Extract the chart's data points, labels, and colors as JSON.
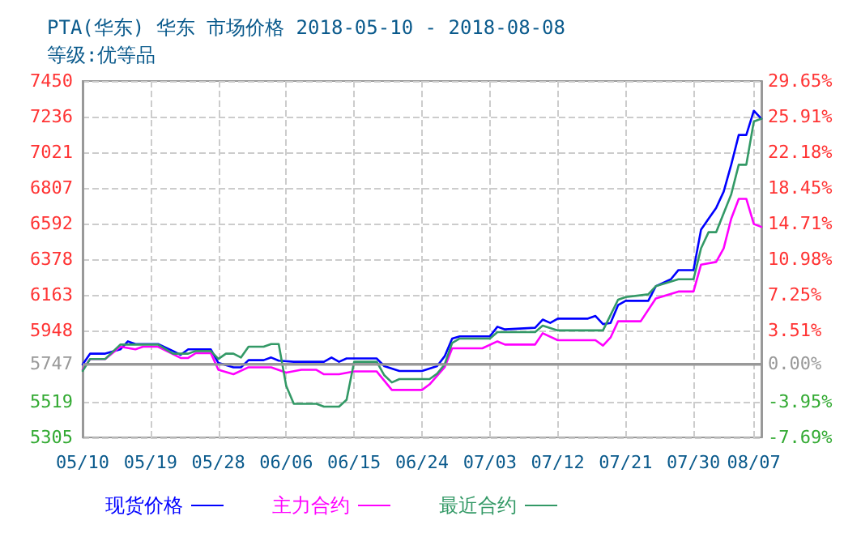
{
  "chart_data": {
    "type": "line",
    "title": "PTA(华东) 华东 市场价格 2018-05-10 - 2018-08-08",
    "subtitle": "等级:优等品",
    "xlim": [
      "2018-05-10",
      "2018-08-08"
    ],
    "xticks": [
      {
        "value": "2018-05-10",
        "label": "05/10"
      },
      {
        "value": "2018-05-19",
        "label": "05/19"
      },
      {
        "value": "2018-05-28",
        "label": "05/28"
      },
      {
        "value": "2018-06-06",
        "label": "06/06"
      },
      {
        "value": "2018-06-15",
        "label": "06/15"
      },
      {
        "value": "2018-06-24",
        "label": "06/24"
      },
      {
        "value": "2018-07-03",
        "label": "07/03"
      },
      {
        "value": "2018-07-12",
        "label": "07/12"
      },
      {
        "value": "2018-07-21",
        "label": "07/21"
      },
      {
        "value": "2018-07-30",
        "label": "07/30"
      },
      {
        "value": "2018-08-07",
        "label": "08/07"
      }
    ],
    "ylim": [
      5305,
      7450
    ],
    "yticks": [
      5305,
      5519,
      5747,
      5948,
      6163,
      6378,
      6592,
      6807,
      7021,
      7236,
      7450
    ],
    "y2lim": [
      -7.69,
      29.65
    ],
    "y2ticks": [
      {
        "value": -7.69,
        "label": "-7.69%"
      },
      {
        "value": -3.95,
        "label": "-3.95%"
      },
      {
        "value": 0,
        "label": "0.00%"
      },
      {
        "value": 3.51,
        "label": "3.51%"
      },
      {
        "value": 7.25,
        "label": "7.25%"
      },
      {
        "value": 10.98,
        "label": "10.98%"
      },
      {
        "value": 14.71,
        "label": "14.71%"
      },
      {
        "value": 18.45,
        "label": "18.45%"
      },
      {
        "value": 22.18,
        "label": "22.18%"
      },
      {
        "value": 25.91,
        "label": "25.91%"
      },
      {
        "value": 29.65,
        "label": "29.65%"
      }
    ],
    "ref_lines": [
      {
        "axis": "y2",
        "value": 0,
        "label": null,
        "color": "#999999"
      }
    ],
    "grid": true,
    "legend": "bottom left",
    "marker": "none",
    "line_style": "solid",
    "series": [
      {
        "name": "现货价格",
        "color": "#0000ff",
        "x": [
          "2018-05-10",
          "2018-05-11",
          "2018-05-13",
          "2018-05-15",
          "2018-05-16",
          "2018-05-17",
          "2018-05-20",
          "2018-05-22",
          "2018-05-23",
          "2018-05-24",
          "2018-05-27",
          "2018-05-28",
          "2018-05-30",
          "2018-05-31",
          "2018-06-01",
          "2018-06-03",
          "2018-06-04",
          "2018-06-05",
          "2018-06-07",
          "2018-06-11",
          "2018-06-12",
          "2018-06-13",
          "2018-06-14",
          "2018-06-18",
          "2018-06-19",
          "2018-06-21",
          "2018-06-24",
          "2018-06-26",
          "2018-06-27",
          "2018-06-28",
          "2018-06-29",
          "2018-07-03",
          "2018-07-04",
          "2018-07-05",
          "2018-07-09",
          "2018-07-10",
          "2018-07-11",
          "2018-07-12",
          "2018-07-16",
          "2018-07-17",
          "2018-07-18",
          "2018-07-19",
          "2018-07-20",
          "2018-07-21",
          "2018-07-24",
          "2018-07-25",
          "2018-07-27",
          "2018-07-28",
          "2018-07-30",
          "2018-07-31",
          "2018-08-01",
          "2018-08-02",
          "2018-08-03",
          "2018-08-04",
          "2018-08-05",
          "2018-08-06",
          "2018-08-07",
          "2018-08-08"
        ],
        "values": [
          5744,
          5809,
          5809,
          5835,
          5883,
          5867,
          5867,
          5825,
          5802,
          5835,
          5835,
          5753,
          5727,
          5727,
          5770,
          5770,
          5786,
          5767,
          5760,
          5760,
          5786,
          5760,
          5780,
          5780,
          5734,
          5705,
          5705,
          5734,
          5793,
          5900,
          5913,
          5913,
          5971,
          5955,
          5965,
          6014,
          5994,
          6020,
          6020,
          6036,
          5987,
          5994,
          6101,
          6127,
          6127,
          6215,
          6257,
          6312,
          6312,
          6556,
          6621,
          6686,
          6784,
          6946,
          7125,
          7125,
          7271,
          7223
        ]
      },
      {
        "name": "主力合约",
        "color": "#ff00ff",
        "x": [
          "2018-05-10",
          "2018-05-11",
          "2018-05-13",
          "2018-05-15",
          "2018-05-17",
          "2018-05-18",
          "2018-05-20",
          "2018-05-23",
          "2018-05-24",
          "2018-05-25",
          "2018-05-27",
          "2018-05-28",
          "2018-05-30",
          "2018-06-01",
          "2018-06-04",
          "2018-06-06",
          "2018-06-08",
          "2018-06-10",
          "2018-06-11",
          "2018-06-13",
          "2018-06-15",
          "2018-06-18",
          "2018-06-20",
          "2018-06-24",
          "2018-06-25",
          "2018-06-27",
          "2018-06-28",
          "2018-07-02",
          "2018-07-04",
          "2018-07-05",
          "2018-07-09",
          "2018-07-10",
          "2018-07-12",
          "2018-07-17",
          "2018-07-18",
          "2018-07-19",
          "2018-07-20",
          "2018-07-23",
          "2018-07-25",
          "2018-07-28",
          "2018-07-30",
          "2018-07-31",
          "2018-08-02",
          "2018-08-03",
          "2018-08-04",
          "2018-08-05",
          "2018-08-06",
          "2018-08-07",
          "2018-08-08"
        ],
        "values": [
          5712,
          5777,
          5777,
          5851,
          5835,
          5851,
          5851,
          5783,
          5783,
          5812,
          5812,
          5712,
          5685,
          5727,
          5727,
          5695,
          5712,
          5712,
          5685,
          5685,
          5702,
          5702,
          5591,
          5591,
          5624,
          5727,
          5841,
          5841,
          5883,
          5864,
          5864,
          5932,
          5890,
          5890,
          5858,
          5906,
          6004,
          6004,
          6141,
          6183,
          6183,
          6345,
          6361,
          6443,
          6621,
          6741,
          6741,
          6589,
          6572
        ]
      },
      {
        "name": "最近合约",
        "color": "#339966",
        "x": [
          "2018-05-10",
          "2018-05-11",
          "2018-05-13",
          "2018-05-15",
          "2018-05-20",
          "2018-05-22",
          "2018-05-24",
          "2018-05-25",
          "2018-05-27",
          "2018-05-28",
          "2018-05-29",
          "2018-05-30",
          "2018-05-31",
          "2018-06-01",
          "2018-06-03",
          "2018-06-04",
          "2018-06-05",
          "2018-06-06",
          "2018-06-07",
          "2018-06-10",
          "2018-06-11",
          "2018-06-13",
          "2018-06-14",
          "2018-06-15",
          "2018-06-18",
          "2018-06-19",
          "2018-06-20",
          "2018-06-21",
          "2018-06-25",
          "2018-06-26",
          "2018-06-27",
          "2018-06-28",
          "2018-06-29",
          "2018-07-03",
          "2018-07-04",
          "2018-07-09",
          "2018-07-10",
          "2018-07-12",
          "2018-07-18",
          "2018-07-20",
          "2018-07-21",
          "2018-07-24",
          "2018-07-25",
          "2018-07-28",
          "2018-07-30",
          "2018-07-31",
          "2018-08-01",
          "2018-08-02",
          "2018-08-04",
          "2018-08-05",
          "2018-08-06",
          "2018-08-07",
          "2018-08-08"
        ],
        "values": [
          5705,
          5777,
          5777,
          5864,
          5864,
          5809,
          5809,
          5825,
          5825,
          5777,
          5809,
          5809,
          5786,
          5851,
          5851,
          5867,
          5867,
          5614,
          5507,
          5507,
          5490,
          5490,
          5532,
          5760,
          5760,
          5679,
          5636,
          5656,
          5656,
          5688,
          5744,
          5874,
          5900,
          5900,
          5939,
          5939,
          5978,
          5949,
          5949,
          6134,
          6150,
          6166,
          6215,
          6257,
          6257,
          6443,
          6540,
          6540,
          6768,
          6946,
          6946,
          7206,
          7223
        ]
      }
    ]
  }
}
